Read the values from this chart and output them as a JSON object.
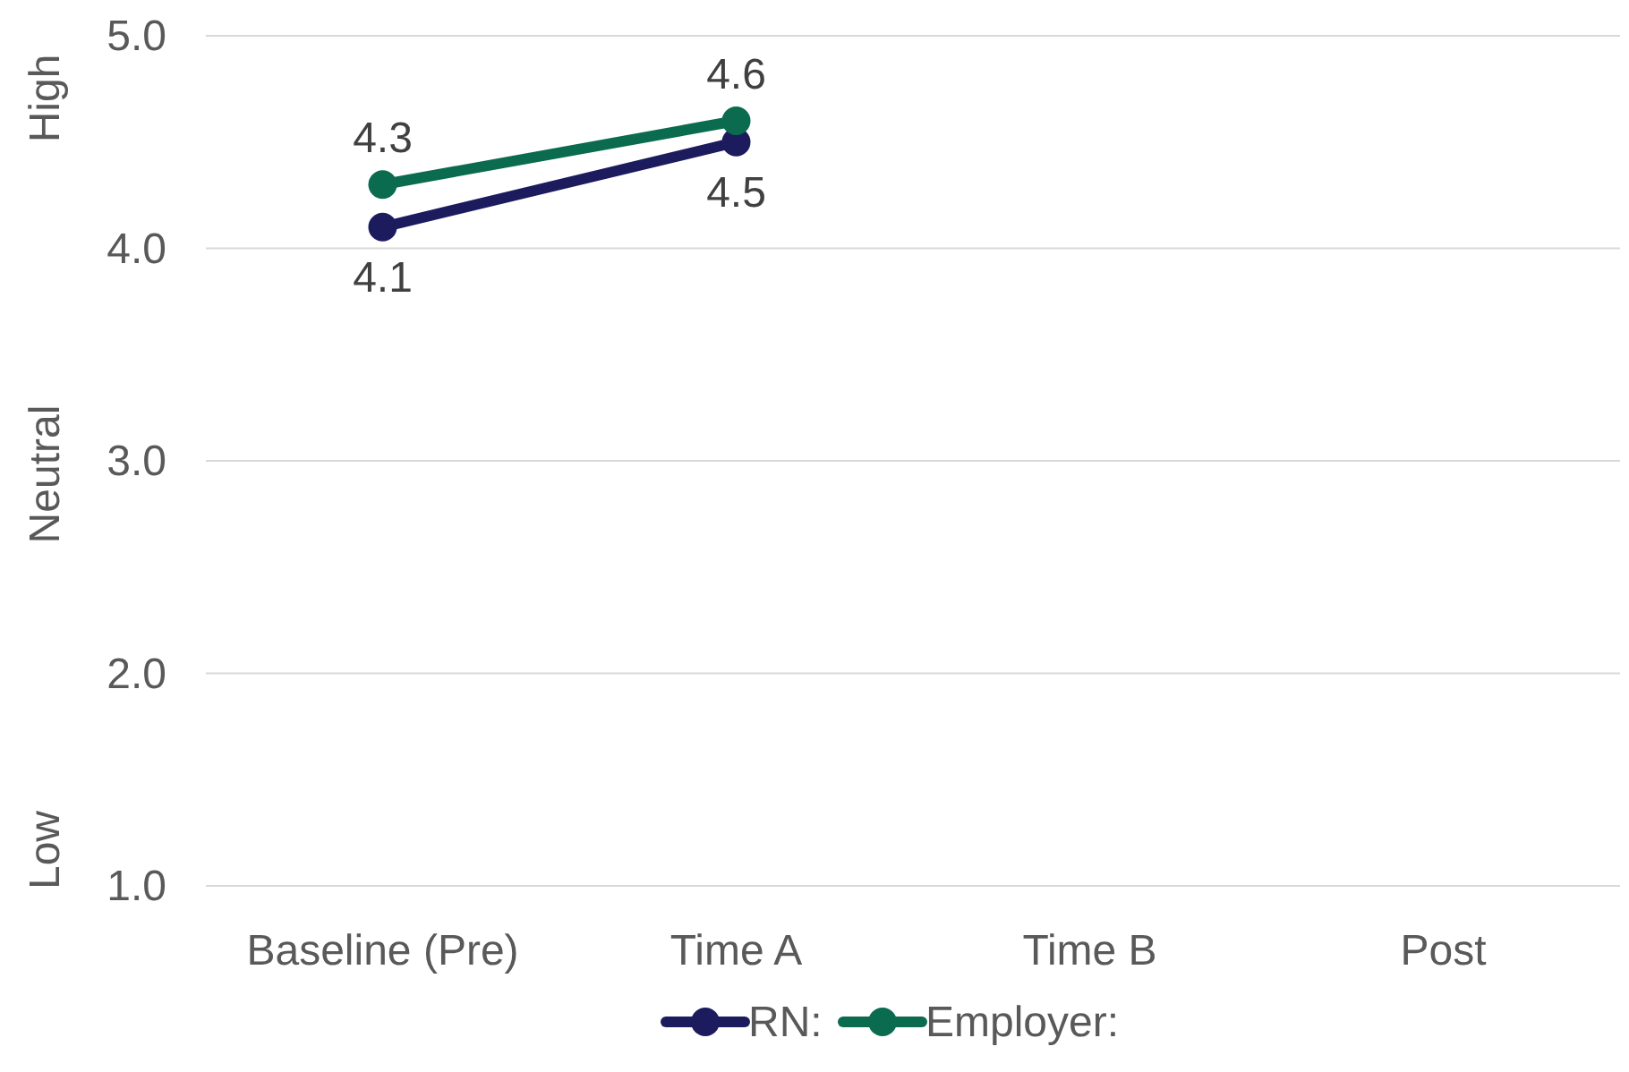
{
  "chart_data": {
    "type": "line",
    "categories": [
      "Baseline (Pre)",
      "Time A",
      "Time B",
      "Post"
    ],
    "series": [
      {
        "name": "RN:",
        "color": "#1c1b5e",
        "values": [
          4.1,
          4.5,
          null,
          null
        ]
      },
      {
        "name": "Employer:",
        "color": "#0b6b4e",
        "values": [
          4.3,
          4.6,
          null,
          null
        ]
      }
    ],
    "ylim": [
      1,
      5
    ],
    "yticks": [
      {
        "value": 1,
        "label": "1.0"
      },
      {
        "value": 2,
        "label": "2.0"
      },
      {
        "value": 3,
        "label": "3.0"
      },
      {
        "value": 4,
        "label": "4.0"
      },
      {
        "value": 5,
        "label": "5.0"
      }
    ],
    "annotations": [
      "High",
      "Neutral",
      "Low"
    ],
    "grid": "y",
    "legend": "bottom",
    "marker": "circle",
    "line_style": "solid",
    "data_labels": true
  }
}
